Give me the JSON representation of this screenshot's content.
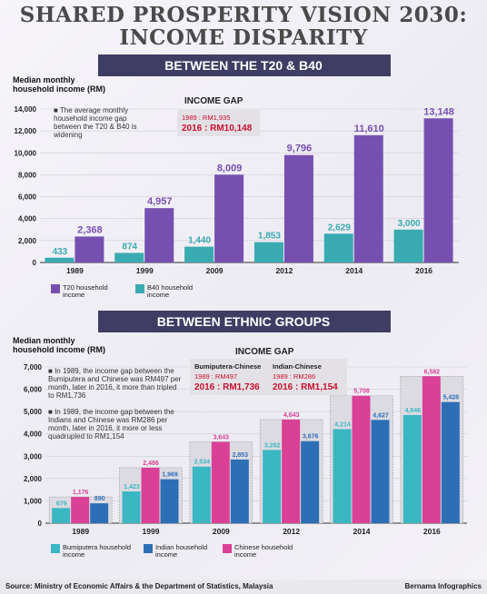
{
  "title_line1": "SHARED PROSPERITY VISION 2030:",
  "title_line2": "INCOME DISPARITY",
  "section1": {
    "banner": "BETWEEN THE T20 & B40",
    "note": "The average monthly household income gap between the T20 & B40 is widening",
    "gap_title": "INCOME GAP",
    "gap_1989": "1989 : RM1,935",
    "gap_2016": "2016 : RM10,148",
    "chart_data": {
      "type": "bar",
      "ylabel": "Median monthly household income (RM)",
      "categories": [
        "1989",
        "1999",
        "2009",
        "2012",
        "2014",
        "2016"
      ],
      "ylim": [
        0,
        14000
      ],
      "yticks": [
        "0",
        "2,000",
        "4,000",
        "6,000",
        "8,000",
        "10,000",
        "12,000",
        "14,000"
      ],
      "series": [
        {
          "name": "B40 household income",
          "values": [
            433,
            874,
            1440,
            1853,
            2629,
            3000
          ],
          "labels": [
            "433",
            "874",
            "1,440",
            "1,853",
            "2,629",
            "3,000"
          ],
          "color": "#3aaab1"
        },
        {
          "name": "T20 household income",
          "values": [
            2368,
            4957,
            8009,
            9796,
            11610,
            13148
          ],
          "labels": [
            "2,368",
            "4,957",
            "8,009",
            "9,796",
            "11,610",
            "13,148"
          ],
          "color": "#7650b0"
        }
      ]
    }
  },
  "section2": {
    "banner": "BETWEEN ETHNIC GROUPS",
    "note1": "In 1989, the income gap between the Bumiputera and Chinese was RM497 per month, later in 2016, it more than tripled to RM1,736",
    "note2": "In 1989, the income gap between the Indians and Chinese was RM286 per month, later in 2016, it more or less quadrupled to RM1,154",
    "gap_title": "INCOME GAP",
    "gap_bc": {
      "head": "Bumiputera-Chinese",
      "y1989": "1989 : RM497",
      "y2016": "2016 : RM1,736"
    },
    "gap_ic": {
      "head": "Indian-Chinese",
      "y1989": "1989 : RM286",
      "y2016": "2016 : RM1,154"
    },
    "chart_data": {
      "type": "bar",
      "ylabel": "Median monthly household income (RM)",
      "categories": [
        "1989",
        "1999",
        "2009",
        "2012",
        "2014",
        "2016"
      ],
      "ylim": [
        0,
        7000
      ],
      "yticks": [
        "0",
        "1,000",
        "2,000",
        "3,000",
        "4,000",
        "5,000",
        "6,000",
        "7,000"
      ],
      "series": [
        {
          "name": "Bumiputera household income",
          "values": [
            679,
            1423,
            2534,
            3282,
            4214,
            4846
          ],
          "labels": [
            "679",
            "1,423",
            "2,534",
            "3,282",
            "4,214",
            "4,846"
          ],
          "color": "#3ab7c3"
        },
        {
          "name": "Chinese household income",
          "values": [
            1176,
            2486,
            3643,
            4643,
            5708,
            6582
          ],
          "labels": [
            "1,176",
            "2,486",
            "3,643",
            "4,643",
            "5,708",
            "6,582"
          ],
          "color": "#d94096"
        },
        {
          "name": "Indian household income",
          "values": [
            890,
            1969,
            2853,
            3676,
            4627,
            5428
          ],
          "labels": [
            "890",
            "1,969",
            "2,853",
            "3,676",
            "4,627",
            "5,428"
          ],
          "color": "#2d6fb5"
        }
      ]
    }
  },
  "footer": {
    "source": "Source: Ministry of Economic Affairs & the Department of Statistics, Malaysia",
    "credit": "Bernama Infographics"
  }
}
